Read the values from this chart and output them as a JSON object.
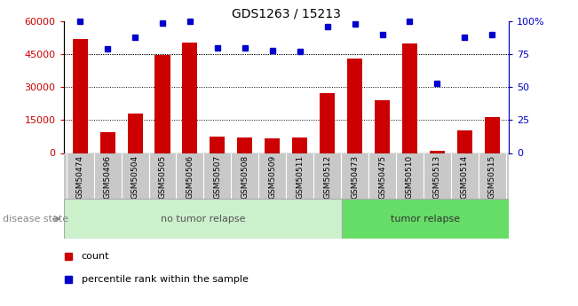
{
  "title": "GDS1263 / 15213",
  "samples": [
    "GSM50474",
    "GSM50496",
    "GSM50504",
    "GSM50505",
    "GSM50506",
    "GSM50507",
    "GSM50508",
    "GSM50509",
    "GSM50511",
    "GSM50512",
    "GSM50473",
    "GSM50475",
    "GSM50510",
    "GSM50513",
    "GSM50514",
    "GSM50515"
  ],
  "counts": [
    52000,
    9500,
    18000,
    44500,
    50500,
    7500,
    7000,
    6500,
    7000,
    27500,
    43000,
    24000,
    50000,
    900,
    10500,
    16500
  ],
  "percentiles": [
    100,
    79,
    88,
    99,
    100,
    80,
    80,
    78,
    77,
    96,
    98,
    90,
    100,
    53,
    88,
    90
  ],
  "no_tumor_count": 10,
  "tumor_count": 6,
  "bar_color": "#cc0000",
  "dot_color": "#0000cc",
  "xtick_bg": "#c8c8c8",
  "no_tumor_bg": "#ccf0cc",
  "tumor_bg": "#66dd66",
  "ylim_left": [
    0,
    60000
  ],
  "ylim_right": [
    0,
    100
  ],
  "yticks_left": [
    0,
    15000,
    30000,
    45000,
    60000
  ],
  "yticks_right": [
    0,
    25,
    50,
    75,
    100
  ],
  "yticklabels_right": [
    "0",
    "25",
    "50",
    "75",
    "100%"
  ],
  "left_tick_color": "#cc0000",
  "right_tick_color": "#0000cc",
  "grid_yticks": [
    15000,
    30000,
    45000
  ],
  "disease_state_label": "disease state",
  "no_tumor_label": "no tumor relapse",
  "tumor_label": "tumor relapse",
  "legend_count": "count",
  "legend_pct": "percentile rank within the sample"
}
